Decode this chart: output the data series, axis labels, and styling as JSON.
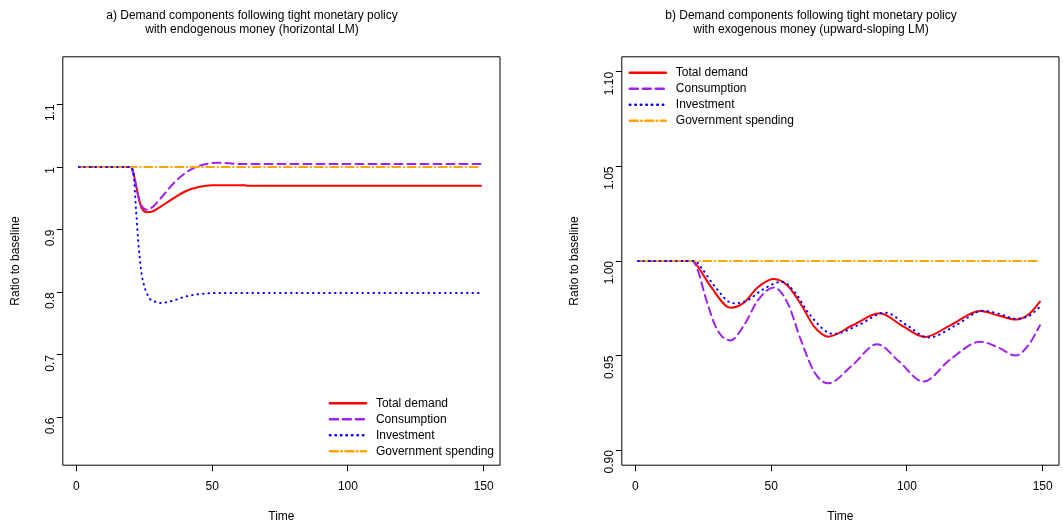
{
  "chart_data": [
    {
      "type": "line",
      "title": "a) Demand components following tight monetary policy\nwith endogenous money (horizontal LM)",
      "xlabel": "Time",
      "ylabel": "Ratio to baseline",
      "xlim": [
        -5,
        156
      ],
      "xticks": [
        0,
        50,
        100,
        150
      ],
      "ylim": [
        0.524,
        1.176
      ],
      "yticks": [
        0.6,
        0.7,
        0.8,
        0.9,
        1.0,
        1.1
      ],
      "grid": false,
      "legend": "bottom right",
      "marker": "none",
      "series": [
        {
          "name": "Total demand",
          "color": "#ff0000",
          "line_style": "solid",
          "x": [
            1,
            20,
            21,
            22,
            23,
            24,
            26,
            28,
            30,
            35,
            40,
            45,
            50,
            62,
            63,
            149
          ],
          "values": [
            1,
            1,
            0.99,
            0.97,
            0.95,
            0.935,
            0.928,
            0.929,
            0.934,
            0.948,
            0.961,
            0.968,
            0.971,
            0.971,
            0.97,
            0.97
          ]
        },
        {
          "name": "Consumption",
          "color": "#a020f0",
          "line_style": "dashed",
          "x": [
            1,
            20,
            21,
            22,
            23,
            24,
            26,
            28,
            32,
            36,
            40,
            44,
            48,
            52,
            56,
            60,
            149
          ],
          "values": [
            1,
            1,
            0.99,
            0.97,
            0.95,
            0.938,
            0.932,
            0.936,
            0.955,
            0.975,
            0.99,
            1.0,
            1.005,
            1.007,
            1.006,
            1.005,
            1.005
          ]
        },
        {
          "name": "Investment",
          "color": "#0000ff",
          "line_style": "dotted",
          "x": [
            1,
            20,
            21,
            22,
            23,
            24,
            25,
            27,
            29,
            31,
            35,
            40,
            45,
            55,
            149
          ],
          "values": [
            1,
            1,
            0.99,
            0.93,
            0.87,
            0.83,
            0.81,
            0.79,
            0.785,
            0.783,
            0.786,
            0.793,
            0.797,
            0.799,
            0.799
          ]
        },
        {
          "name": "Government spending",
          "color": "#ffa500",
          "line_style": "dashdot",
          "x": [
            1,
            149
          ],
          "values": [
            1,
            1
          ]
        }
      ]
    },
    {
      "type": "line",
      "title": "b) Demand components following tight monetary policy\nwith exogenous money (upward-sloping LM)",
      "xlabel": "Time",
      "ylabel": "Ratio to baseline",
      "xlim": [
        -5,
        156
      ],
      "xticks": [
        0,
        50,
        100,
        150
      ],
      "ylim": [
        0.892,
        1.108
      ],
      "yticks": [
        {
          "value": 0.9,
          "label": "0.90"
        },
        {
          "value": 0.95,
          "label": "0.95"
        },
        {
          "value": 1.0,
          "label": "1.00"
        },
        {
          "value": 1.05,
          "label": "1.05"
        },
        {
          "value": 1.1,
          "label": "1.10"
        }
      ],
      "grid": false,
      "legend": "top left",
      "marker": "none",
      "series": [
        {
          "name": "Total demand",
          "color": "#ff0000",
          "line_style": "solid",
          "x": [
            1,
            21,
            23,
            28,
            35,
            40,
            45,
            51,
            56,
            61,
            66,
            71,
            80,
            90,
            98,
            106.5,
            116,
            127,
            134,
            140,
            145,
            149
          ],
          "values": [
            1,
            1,
            0.997,
            0.986,
            0.9753,
            0.978,
            0.986,
            0.9905,
            0.987,
            0.977,
            0.965,
            0.96,
            0.966,
            0.9723,
            0.966,
            0.9598,
            0.966,
            0.9735,
            0.971,
            0.969,
            0.972,
            0.9785
          ]
        },
        {
          "name": "Consumption",
          "color": "#a020f0",
          "line_style": "dashed",
          "x": [
            1,
            21,
            23,
            26,
            30,
            35,
            40,
            45,
            51,
            56,
            61,
            66,
            71,
            80,
            89,
            97,
            106,
            116,
            127,
            134,
            140,
            145,
            149
          ],
          "values": [
            1,
            1,
            0.995,
            0.98,
            0.964,
            0.958,
            0.966,
            0.979,
            0.986,
            0.978,
            0.958,
            0.941,
            0.9353,
            0.945,
            0.956,
            0.947,
            0.9362,
            0.948,
            0.9573,
            0.954,
            0.95,
            0.956,
            0.966
          ]
        },
        {
          "name": "Investment",
          "color": "#0000ff",
          "line_style": "dotted",
          "x": [
            1,
            22,
            24,
            29,
            36,
            41,
            47,
            54,
            59,
            64,
            73,
            82,
            92,
            100,
            108,
            118,
            128,
            134,
            140,
            145,
            149
          ],
          "values": [
            1,
            1,
            0.997,
            0.987,
            0.9776,
            0.979,
            0.985,
            0.989,
            0.983,
            0.972,
            0.9614,
            0.966,
            0.9727,
            0.966,
            0.9595,
            0.966,
            0.9737,
            0.972,
            0.9695,
            0.971,
            0.9758
          ]
        },
        {
          "name": "Government spending",
          "color": "#ffa500",
          "line_style": "dashdot",
          "x": [
            1,
            149
          ],
          "values": [
            1,
            1
          ]
        }
      ]
    }
  ]
}
